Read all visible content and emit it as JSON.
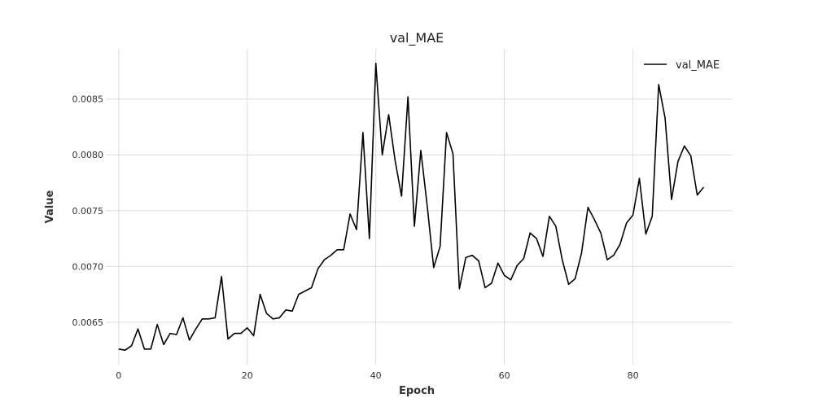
{
  "chart_data": {
    "type": "line",
    "title": "val_MAE",
    "xlabel": "Epoch",
    "ylabel": "Value",
    "xlim": [
      -2,
      95.5
    ],
    "ylim": [
      0.00612,
      0.00895
    ],
    "x_ticks": [
      0,
      20,
      40,
      60,
      80
    ],
    "y_ticks": [
      0.0065,
      0.007,
      0.0075,
      0.008,
      0.0085
    ],
    "y_tick_labels": [
      "0.0065",
      "0.0070",
      "0.0075",
      "0.0080",
      "0.0085"
    ],
    "grid": true,
    "legend_position": "top-right",
    "series": [
      {
        "name": "val_MAE",
        "color": "#000000",
        "x": [
          0,
          1,
          2,
          3,
          4,
          5,
          6,
          7,
          8,
          9,
          10,
          11,
          12,
          13,
          14,
          15,
          16,
          17,
          18,
          19,
          20,
          21,
          22,
          23,
          24,
          25,
          26,
          27,
          28,
          29,
          30,
          31,
          32,
          33,
          34,
          35,
          36,
          37,
          38,
          39,
          40,
          41,
          42,
          43,
          44,
          45,
          46,
          47,
          48,
          49,
          50,
          51,
          52,
          53,
          54,
          55,
          56,
          57,
          58,
          59,
          60,
          61,
          62,
          63,
          64,
          65,
          66,
          67,
          68,
          69,
          70,
          71,
          72,
          73,
          74,
          75,
          76,
          77,
          78,
          79,
          80,
          81,
          82,
          83,
          84,
          85,
          86,
          87,
          88,
          89,
          90,
          91
        ],
        "values": [
          0.00626,
          0.00625,
          0.00629,
          0.00644,
          0.00626,
          0.00626,
          0.00648,
          0.0063,
          0.0064,
          0.00639,
          0.00654,
          0.00634,
          0.00644,
          0.00653,
          0.00653,
          0.00654,
          0.00691,
          0.00635,
          0.0064,
          0.0064,
          0.00645,
          0.00638,
          0.00675,
          0.00658,
          0.00653,
          0.00654,
          0.00661,
          0.0066,
          0.00675,
          0.00678,
          0.00681,
          0.00698,
          0.00706,
          0.0071,
          0.00715,
          0.00715,
          0.00747,
          0.00733,
          0.0082,
          0.00725,
          0.00882,
          0.008,
          0.00836,
          0.00795,
          0.00763,
          0.00852,
          0.00736,
          0.00804,
          0.00754,
          0.00699,
          0.00718,
          0.0082,
          0.00801,
          0.0068,
          0.00708,
          0.0071,
          0.00705,
          0.00681,
          0.00685,
          0.00703,
          0.00692,
          0.00688,
          0.00701,
          0.00707,
          0.0073,
          0.00725,
          0.00709,
          0.00745,
          0.00736,
          0.00706,
          0.00684,
          0.00689,
          0.00712,
          0.00753,
          0.00742,
          0.0073,
          0.00706,
          0.0071,
          0.0072,
          0.00739,
          0.00746,
          0.00779,
          0.00729,
          0.00745,
          0.00863,
          0.00833,
          0.0076,
          0.00794,
          0.00808,
          0.00799,
          0.00764,
          0.00771
        ]
      }
    ]
  }
}
